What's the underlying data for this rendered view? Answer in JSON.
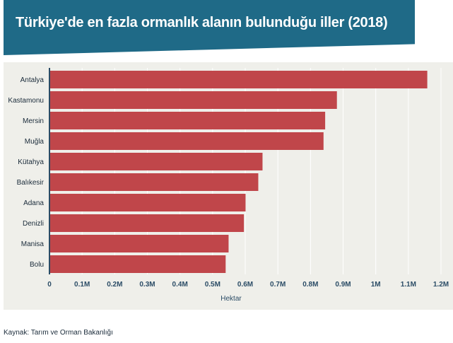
{
  "title": "Türkiye'de en fazla ormanlık alanın bulunduğu iller (2018)",
  "source": "Kaynak: Tarım ve Orman Bakanlığı",
  "colors": {
    "banner": "#1f6a87",
    "bar": "#c0464a",
    "panel": "#efefea",
    "axis": "#2b4c66",
    "grid": "#ffffff"
  },
  "chart_data": {
    "type": "bar",
    "orientation": "horizontal",
    "title": "Türkiye'de en fazla ormanlık alanın bulunduğu iller (2018)",
    "xlabel": "Hektar",
    "ylabel": "",
    "xlim": [
      0,
      1200000
    ],
    "grid": true,
    "categories": [
      "Antalya",
      "Kastamonu",
      "Mersin",
      "Muğla",
      "Kütahya",
      "Balıkesir",
      "Adana",
      "Denizli",
      "Manisa",
      "Bolu"
    ],
    "values": [
      1158000,
      881000,
      845000,
      840000,
      653000,
      640000,
      601000,
      596000,
      549000,
      540000
    ],
    "ticks": [
      0,
      100000,
      200000,
      300000,
      400000,
      500000,
      600000,
      700000,
      800000,
      900000,
      1000000,
      1100000,
      1200000
    ],
    "tick_labels": [
      "0",
      "0.1M",
      "0.2M",
      "0.3M",
      "0.4M",
      "0.5M",
      "0.6M",
      "0.7M",
      "0.8M",
      "0.9M",
      "1M",
      "1.1M",
      "1.2M"
    ]
  }
}
